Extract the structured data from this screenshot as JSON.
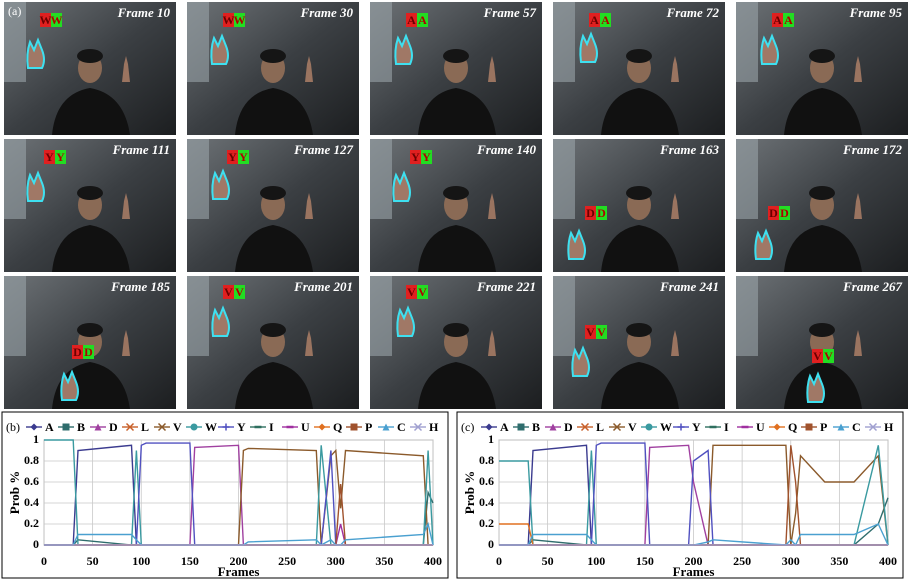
{
  "panel_a": {
    "label": "(a)",
    "frames": [
      {
        "label": "Frame 10",
        "tag": "W"
      },
      {
        "label": "Frame 30",
        "tag": "W"
      },
      {
        "label": "Frame 57",
        "tag": "A"
      },
      {
        "label": "Frame 72",
        "tag": "A"
      },
      {
        "label": "Frame 95",
        "tag": "A"
      },
      {
        "label": "Frame 111",
        "tag": "Y"
      },
      {
        "label": "Frame 127",
        "tag": "Y"
      },
      {
        "label": "Frame 140",
        "tag": "Y"
      },
      {
        "label": "Frame 163",
        "tag": "D"
      },
      {
        "label": "Frame 172",
        "tag": "D"
      },
      {
        "label": "Frame 185",
        "tag": "D"
      },
      {
        "label": "Frame 201",
        "tag": "V"
      },
      {
        "label": "Frame 221",
        "tag": "V"
      },
      {
        "label": "Frame 241",
        "tag": "V"
      },
      {
        "label": "Frame 267",
        "tag": "V"
      }
    ]
  },
  "chart_data": [
    {
      "type": "line",
      "title": "(b)",
      "x_label": "Frames",
      "y_label": "Prob %",
      "x": [
        0,
        30,
        35,
        90,
        95,
        100,
        105,
        150,
        155,
        200,
        205,
        210,
        280,
        285,
        295,
        300,
        305,
        310,
        390,
        395,
        400
      ],
      "xlim": [
        0,
        400
      ],
      "xticks": [
        0,
        50,
        100,
        150,
        200,
        250,
        300,
        350,
        400
      ],
      "ylim": [
        0,
        1
      ],
      "yticks": [
        0,
        0.2,
        0.4,
        0.6,
        0.8,
        1
      ],
      "grid": true,
      "series": [
        {
          "name": "A",
          "color": "#3b3b8f",
          "values": [
            0,
            0,
            0.9,
            0.95,
            0,
            0,
            0,
            0,
            0,
            0,
            0,
            0,
            0,
            0,
            0,
            0,
            0,
            0,
            0,
            0,
            0
          ]
        },
        {
          "name": "B",
          "color": "#2f6d6d",
          "values": [
            0,
            0,
            0.05,
            0,
            0,
            0,
            0,
            0,
            0,
            0,
            0,
            0,
            0,
            0,
            0,
            0,
            0,
            0,
            0,
            0.5,
            0.4
          ]
        },
        {
          "name": "D",
          "color": "#a040a0",
          "values": [
            0,
            0,
            0,
            0,
            0,
            0,
            0,
            0,
            0.93,
            0.95,
            0,
            0,
            0,
            0,
            0,
            0,
            0,
            0,
            0,
            0,
            0
          ]
        },
        {
          "name": "L",
          "color": "#c8602a",
          "values": [
            0,
            0,
            0,
            0,
            0,
            0,
            0,
            0,
            0,
            0,
            0,
            0,
            0,
            0,
            0,
            0,
            0,
            0,
            0,
            0,
            0
          ]
        },
        {
          "name": "V",
          "color": "#8b5a2b",
          "values": [
            0,
            0,
            0,
            0,
            0,
            0,
            0,
            0,
            0,
            0,
            0.9,
            0.92,
            0.9,
            0,
            0.85,
            0.9,
            0.35,
            0.9,
            0.85,
            0,
            0
          ]
        },
        {
          "name": "W",
          "color": "#3a9aa0",
          "values": [
            1,
            1,
            0,
            0,
            0.9,
            0,
            0,
            0,
            0,
            0,
            0,
            0,
            0,
            0.95,
            0,
            0,
            0,
            0,
            0,
            0.9,
            0
          ]
        },
        {
          "name": "Y",
          "color": "#5050c0",
          "values": [
            0,
            0,
            0,
            0,
            0,
            0.95,
            0.97,
            0.97,
            0,
            0,
            0,
            0,
            0,
            0,
            0.9,
            0,
            0,
            0,
            0,
            0,
            0
          ]
        },
        {
          "name": "I",
          "color": "#2f6f5f",
          "values": [
            0,
            0,
            0,
            0,
            0,
            0,
            0,
            0,
            0,
            0,
            0,
            0,
            0,
            0,
            0,
            0,
            0,
            0,
            0,
            0,
            0
          ]
        },
        {
          "name": "U",
          "color": "#a030a0",
          "values": [
            0,
            0,
            0,
            0,
            0,
            0,
            0,
            0,
            0,
            0,
            0,
            0,
            0,
            0,
            0,
            0,
            0.2,
            0,
            0,
            0,
            0
          ]
        },
        {
          "name": "Q",
          "color": "#e07020",
          "values": [
            0,
            0,
            0,
            0,
            0,
            0,
            0,
            0,
            0,
            0,
            0,
            0,
            0,
            0,
            0,
            0,
            0,
            0,
            0,
            0,
            0
          ]
        },
        {
          "name": "P",
          "color": "#a0522d",
          "values": [
            0,
            0,
            0,
            0,
            0,
            0,
            0,
            0,
            0,
            0,
            0,
            0,
            0,
            0,
            0,
            0,
            0.58,
            0,
            0,
            0,
            0
          ]
        },
        {
          "name": "C",
          "color": "#4aa0d0",
          "values": [
            0,
            0,
            0.1,
            0.1,
            0.05,
            0,
            0,
            0,
            0,
            0,
            0,
            0.03,
            0.05,
            0,
            0.05,
            0,
            0,
            0.05,
            0.1,
            0.2,
            0
          ]
        },
        {
          "name": "H",
          "color": "#a0a0d0",
          "values": [
            0,
            0,
            0,
            0,
            0,
            0,
            0,
            0,
            0,
            0,
            0,
            0,
            0,
            0,
            0,
            0,
            0,
            0,
            0,
            0,
            0
          ]
        }
      ]
    },
    {
      "type": "line",
      "title": "(c)",
      "x_label": "Frames",
      "y_label": "Prob %",
      "x": [
        0,
        30,
        35,
        90,
        95,
        100,
        105,
        150,
        155,
        195,
        200,
        215,
        220,
        295,
        300,
        305,
        310,
        335,
        365,
        390,
        400
      ],
      "xlim": [
        0,
        400
      ],
      "xticks": [
        0,
        50,
        100,
        150,
        200,
        250,
        300,
        350,
        400
      ],
      "ylim": [
        0,
        1
      ],
      "yticks": [
        0,
        0.2,
        0.4,
        0.6,
        0.8,
        1
      ],
      "grid": true,
      "series": [
        {
          "name": "A",
          "color": "#3b3b8f",
          "values": [
            0,
            0,
            0.9,
            0.95,
            0,
            0,
            0,
            0,
            0,
            0,
            0,
            0,
            0,
            0,
            0,
            0,
            0,
            0,
            0,
            0,
            0
          ]
        },
        {
          "name": "B",
          "color": "#2f6d6d",
          "values": [
            0,
            0,
            0.05,
            0,
            0,
            0,
            0,
            0,
            0,
            0,
            0,
            0,
            0,
            0,
            0,
            0,
            0,
            0,
            0,
            0.2,
            0.45
          ]
        },
        {
          "name": "D",
          "color": "#a040a0",
          "values": [
            0,
            0,
            0,
            0,
            0,
            0,
            0,
            0,
            0.93,
            0.95,
            0.6,
            0,
            0,
            0,
            0,
            0,
            0,
            0,
            0,
            0,
            0
          ]
        },
        {
          "name": "L",
          "color": "#c8602a",
          "values": [
            0,
            0,
            0,
            0,
            0,
            0,
            0,
            0,
            0,
            0,
            0,
            0,
            0,
            0,
            0,
            0,
            0,
            0,
            0,
            0,
            0
          ]
        },
        {
          "name": "V",
          "color": "#8b5a2b",
          "values": [
            0,
            0,
            0,
            0,
            0,
            0,
            0,
            0,
            0,
            0,
            0,
            0,
            0.95,
            0.95,
            0,
            0.3,
            0.85,
            0.6,
            0.6,
            0.85,
            0
          ]
        },
        {
          "name": "W",
          "color": "#3a9aa0",
          "values": [
            0.8,
            0.8,
            0,
            0,
            0.9,
            0,
            0,
            0,
            0,
            0,
            0,
            0,
            0,
            0,
            0,
            0,
            0,
            0,
            0,
            0.95,
            0
          ]
        },
        {
          "name": "Y",
          "color": "#5050c0",
          "values": [
            0,
            0,
            0,
            0,
            0,
            0.95,
            0.97,
            0.97,
            0,
            0,
            0.8,
            0.9,
            0,
            0,
            0,
            0,
            0,
            0,
            0,
            0,
            0
          ]
        },
        {
          "name": "I",
          "color": "#2f6f5f",
          "values": [
            0,
            0,
            0,
            0,
            0,
            0,
            0,
            0,
            0,
            0,
            0,
            0,
            0,
            0,
            0,
            0,
            0,
            0,
            0,
            0,
            0
          ]
        },
        {
          "name": "U",
          "color": "#a030a0",
          "values": [
            0,
            0,
            0,
            0,
            0,
            0,
            0,
            0,
            0,
            0,
            0,
            0,
            0,
            0,
            0,
            0,
            0,
            0,
            0,
            0,
            0
          ]
        },
        {
          "name": "Q",
          "color": "#e07020",
          "values": [
            0.2,
            0.2,
            0,
            0,
            0,
            0,
            0,
            0,
            0,
            0,
            0,
            0,
            0,
            0,
            0,
            0,
            0,
            0,
            0,
            0,
            0
          ]
        },
        {
          "name": "P",
          "color": "#a0522d",
          "values": [
            0,
            0,
            0,
            0,
            0,
            0,
            0,
            0,
            0,
            0,
            0,
            0,
            0,
            0,
            0.95,
            0.6,
            0,
            0,
            0,
            0,
            0
          ]
        },
        {
          "name": "C",
          "color": "#4aa0d0",
          "values": [
            0,
            0,
            0.1,
            0.1,
            0.05,
            0,
            0,
            0,
            0,
            0,
            0,
            0.03,
            0.05,
            0,
            0.05,
            0,
            0.1,
            0.1,
            0.1,
            0.2,
            0
          ]
        },
        {
          "name": "H",
          "color": "#a0a0d0",
          "values": [
            0,
            0,
            0,
            0,
            0,
            0,
            0,
            0,
            0,
            0,
            0,
            0,
            0,
            0,
            0,
            0,
            0,
            0,
            0,
            0,
            0
          ]
        }
      ]
    }
  ]
}
